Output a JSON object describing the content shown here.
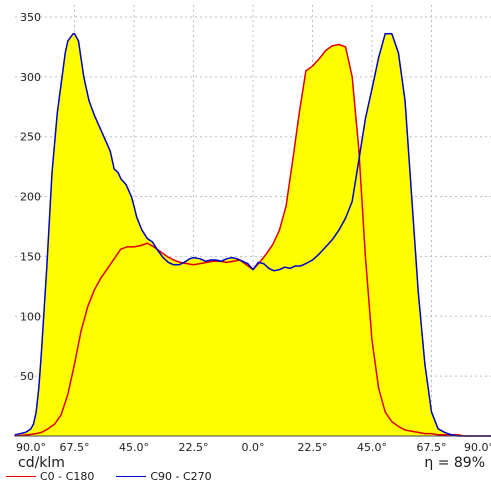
{
  "chart_data": {
    "type": "area",
    "title": "",
    "x_tick_labels": [
      "90.0°",
      "67.5°",
      "45.0°",
      "22.5°",
      "0.0°",
      "22.5°",
      "45.0°",
      "67.5°",
      "90.0°"
    ],
    "x_tick_positions": [
      -90,
      -67.5,
      -45,
      -22.5,
      0,
      22.5,
      45,
      67.5,
      90
    ],
    "xlim": [
      -90,
      90
    ],
    "ylim": [
      0,
      360
    ],
    "y_ticks": [
      50,
      100,
      150,
      200,
      250,
      300,
      350
    ],
    "grid": true,
    "unit_label": "cd/klm",
    "efficiency_label": "η = 89%",
    "legend_position": "bottom-left",
    "fill_color": "#ffff00",
    "series": [
      {
        "name": "C0 - C180",
        "color": "#e00000",
        "x": [
          -90,
          -85,
          -82,
          -80,
          -77.5,
          -75,
          -72.5,
          -70,
          -67.5,
          -65,
          -62.5,
          -60,
          -57.5,
          -55,
          -52.5,
          -50,
          -47.5,
          -45,
          -42.5,
          -40,
          -37.5,
          -35,
          -32.5,
          -30,
          -27.5,
          -25,
          -22.5,
          -20,
          -17.5,
          -15,
          -12.5,
          -10,
          -7.5,
          -5,
          -2.5,
          0,
          2.5,
          5,
          7.5,
          10,
          12.5,
          15,
          17.5,
          20,
          22.5,
          25,
          27.5,
          30,
          32.5,
          35,
          37.5,
          40,
          42.5,
          45,
          47.5,
          50,
          52.5,
          55,
          57.5,
          60,
          62.5,
          65,
          67.5,
          70,
          72.5,
          75,
          77.5,
          80,
          82.5,
          85,
          87.5,
          90
        ],
        "values": [
          0,
          1,
          2,
          3,
          6,
          10,
          18,
          35,
          60,
          88,
          108,
          122,
          132,
          140,
          148,
          156,
          158,
          158,
          159,
          161,
          158,
          154,
          150,
          147,
          145,
          144,
          143,
          144,
          145,
          146,
          146,
          145,
          146,
          147,
          143,
          139,
          145,
          152,
          160,
          172,
          192,
          230,
          270,
          305,
          309,
          315,
          322,
          326,
          327,
          325,
          300,
          240,
          150,
          80,
          40,
          20,
          12,
          8,
          5,
          4,
          3,
          2,
          2,
          1,
          1,
          1,
          1,
          0,
          0,
          0,
          0,
          0
        ]
      },
      {
        "name": "C90 - C270",
        "color": "#0000cc",
        "x": [
          -90,
          -88,
          -86,
          -84,
          -83,
          -82,
          -81,
          -80,
          -78,
          -76,
          -74,
          -72.5,
          -71,
          -70,
          -68,
          -67.5,
          -66,
          -64,
          -62,
          -60,
          -58,
          -56,
          -54,
          -52.5,
          -51,
          -50,
          -48,
          -46,
          -45,
          -44,
          -42,
          -40,
          -38,
          -36,
          -34,
          -32,
          -30,
          -28,
          -26,
          -24,
          -22.5,
          -20,
          -18,
          -16,
          -14,
          -12,
          -10,
          -8,
          -6,
          -4,
          -2,
          0,
          2,
          4,
          6,
          8,
          10,
          12,
          14,
          16,
          18,
          20,
          22.5,
          25,
          27.5,
          30,
          32.5,
          35,
          37.5,
          40,
          42.5,
          45,
          47.5,
          50,
          52.5,
          55,
          57.5,
          60,
          62.5,
          65,
          67.5,
          70,
          72.5,
          75,
          77.5,
          80,
          82.5,
          85,
          87.5,
          90
        ],
        "values": [
          1,
          2,
          3,
          6,
          10,
          20,
          40,
          70,
          140,
          220,
          270,
          295,
          320,
          330,
          336,
          336,
          330,
          300,
          280,
          268,
          258,
          248,
          238,
          223,
          220,
          215,
          210,
          200,
          192,
          183,
          172,
          165,
          162,
          155,
          149,
          145,
          143,
          143,
          145,
          148,
          149,
          148,
          146,
          147,
          147,
          146,
          148,
          149,
          148,
          146,
          144,
          139,
          145,
          144,
          140,
          138,
          139,
          141,
          140,
          142,
          142,
          144,
          147,
          152,
          158,
          164,
          172,
          182,
          196,
          230,
          265,
          290,
          316,
          336,
          336,
          320,
          280,
          200,
          120,
          60,
          20,
          6,
          3,
          1,
          0,
          0,
          0,
          0,
          0,
          0
        ]
      }
    ]
  }
}
